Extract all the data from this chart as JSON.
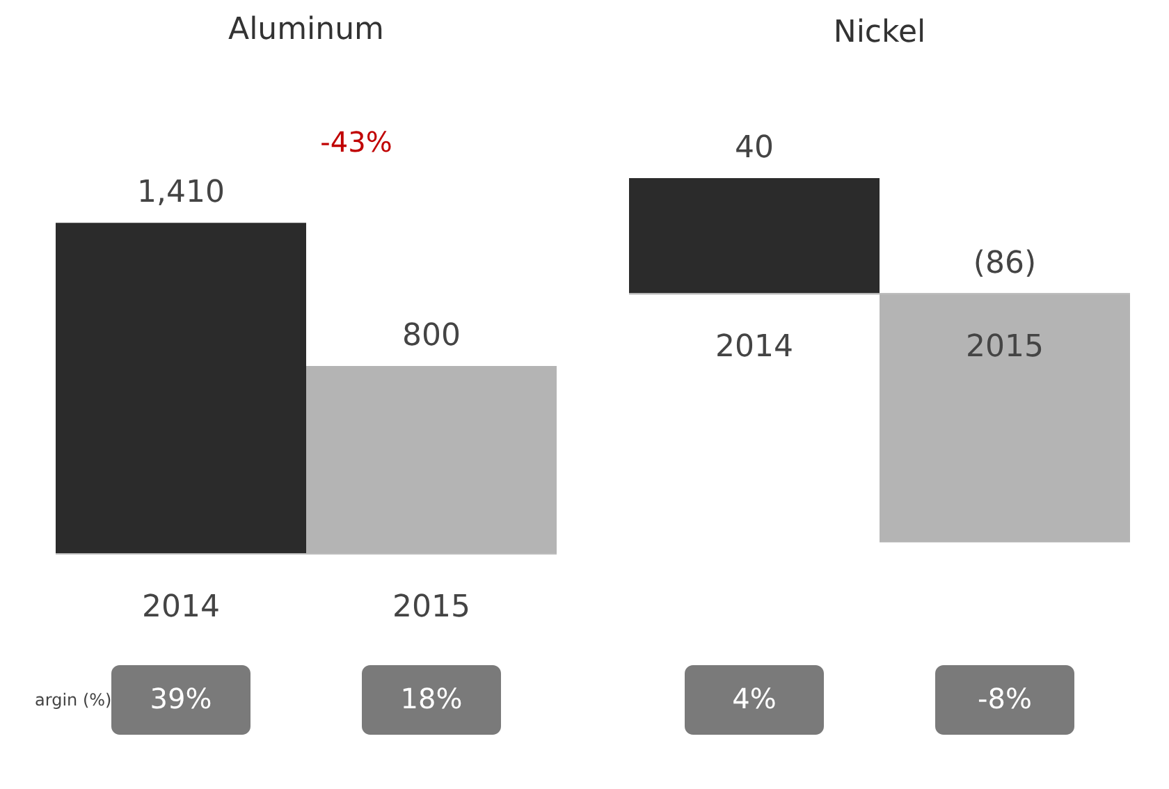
{
  "chart_data": [
    {
      "type": "bar",
      "title": "Aluminum",
      "categories": [
        "2014",
        "2015"
      ],
      "values": [
        1410,
        800
      ],
      "colors": [
        "#2b2b2b",
        "#b4b4b4"
      ],
      "value_labels": [
        "1,410",
        "800"
      ],
      "annotations": [
        "-43%",
        "argin (%)",
        "39%",
        "18%"
      ]
    },
    {
      "type": "bar",
      "title": "Nickel",
      "categories": [
        "2014",
        "2015"
      ],
      "values": [
        40,
        -86
      ],
      "colors": [
        "#2b2b2b",
        "#b4b4b4"
      ],
      "value_labels": [
        "40",
        "(86)"
      ],
      "annotations": [
        "4%",
        "-8%"
      ]
    }
  ]
}
